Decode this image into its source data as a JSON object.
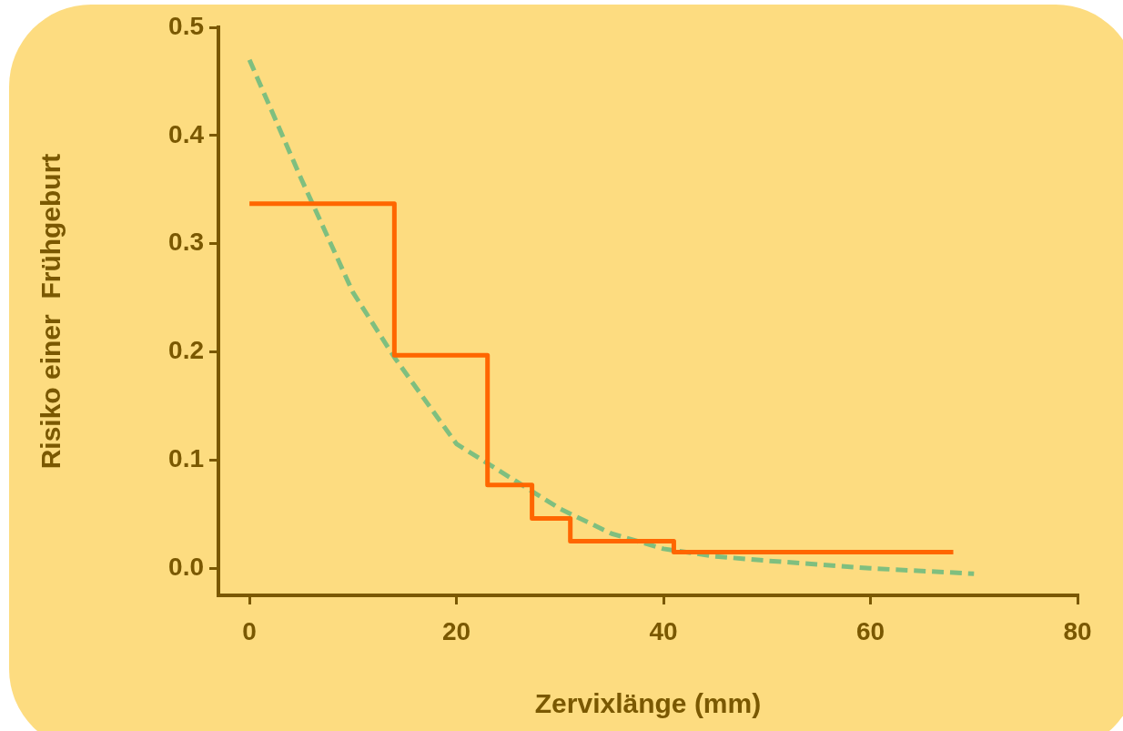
{
  "chart_data": {
    "type": "step",
    "xlabel": "Zervixlänge (mm)",
    "ylabel": "Risiko einer  Frühgeburt",
    "xlim": [
      -3,
      80
    ],
    "xticks": [
      0,
      20,
      40,
      60,
      80
    ],
    "ylim": [
      -0.025,
      0.5
    ],
    "yticks": [
      {
        "value": 0,
        "label": "0.0"
      },
      0.1,
      0.2,
      0.3,
      0.4,
      0.5
    ],
    "grid": false,
    "legend": false,
    "marker": "none",
    "series": [
      {
        "type": "step",
        "color": "#ff6600",
        "x": [
          0,
          14,
          23,
          27.3,
          31,
          41,
          68
        ],
        "values": [
          0.337,
          0.197,
          0.077,
          0.046,
          0.025,
          0.015,
          0.015
        ]
      },
      {
        "type": "line",
        "color": "#7fbf7f",
        "line_style": "dashed",
        "x": [
          0,
          5,
          10,
          14,
          20,
          25,
          30,
          35,
          40,
          45,
          50,
          60,
          70
        ],
        "values": [
          0.47,
          0.36,
          0.255,
          0.195,
          0.115,
          0.085,
          0.055,
          0.032,
          0.018,
          0.011,
          0.007,
          0.0,
          -0.005
        ]
      }
    ]
  }
}
